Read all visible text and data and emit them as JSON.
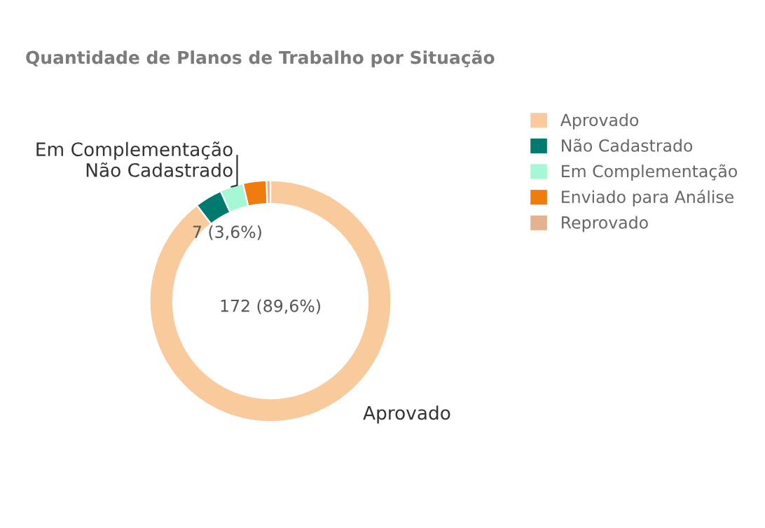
{
  "chart_data": {
    "type": "donut",
    "title": "Quantidade de Planos de Trabalho por Situação",
    "categories": [
      "Aprovado",
      "Não Cadastrado",
      "Em Complementação",
      "Enviado para Análise",
      "Reprovado"
    ],
    "values": [
      172,
      7,
      6,
      6,
      1
    ],
    "colors": [
      "#f9cb9c",
      "#00796f",
      "#a6f7d6",
      "#ef7c0c",
      "#e3b38f"
    ],
    "value_labels": [
      "172 (89,6%)",
      "7 (3,6%)",
      null,
      null,
      null
    ],
    "annotations": [
      {
        "text": "Aprovado",
        "x": "Aprovado"
      },
      {
        "text": "Em Complementação",
        "x": "Em Complementação"
      },
      {
        "text": "Não Cadastrado",
        "x": "Não Cadastrado"
      }
    ],
    "legend": "right"
  }
}
